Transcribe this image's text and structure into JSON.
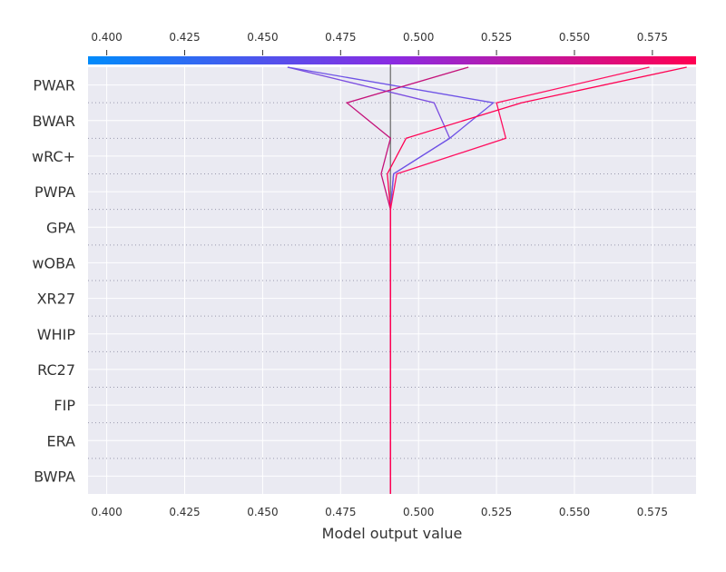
{
  "chart_data": {
    "type": "line",
    "xlabel": "Model output value",
    "ylabel": "",
    "xlim": [
      0.394,
      0.589
    ],
    "xticks": [
      "0.400",
      "0.425",
      "0.450",
      "0.475",
      "0.500",
      "0.525",
      "0.550",
      "0.575"
    ],
    "base_value": 0.491,
    "features": [
      "PWAR",
      "BWAR",
      "wRC+",
      "PWPA",
      "GPA",
      "wOBA",
      "XR27",
      "WHIP",
      "RC27",
      "FIP",
      "ERA",
      "BWPA"
    ],
    "colorbar": {
      "low_color": "#008bfb",
      "mid_color": "#8a2be2",
      "high_color": "#ff0052"
    },
    "grid": true,
    "series": [
      {
        "color": "#7b4de0",
        "values": [
          0.491,
          0.491,
          0.491,
          0.491,
          0.491,
          0.491,
          0.492,
          0.51,
          0.505,
          0.458
        ]
      },
      {
        "color": "#6e52e6",
        "values": [
          0.491,
          0.491,
          0.491,
          0.491,
          0.491,
          0.491,
          0.492,
          0.51,
          0.524,
          0.458
        ]
      },
      {
        "color": "#c4127a",
        "values": [
          0.491,
          0.491,
          0.491,
          0.491,
          0.491,
          0.491,
          0.488,
          0.491,
          0.477,
          0.516
        ]
      },
      {
        "color": "#ff1060",
        "values": [
          0.491,
          0.491,
          0.491,
          0.491,
          0.491,
          0.491,
          0.493,
          0.528,
          0.525,
          0.574
        ]
      },
      {
        "color": "#ff0052",
        "values": [
          0.491,
          0.491,
          0.491,
          0.491,
          0.491,
          0.491,
          0.49,
          0.496,
          0.533,
          0.586
        ]
      }
    ]
  }
}
